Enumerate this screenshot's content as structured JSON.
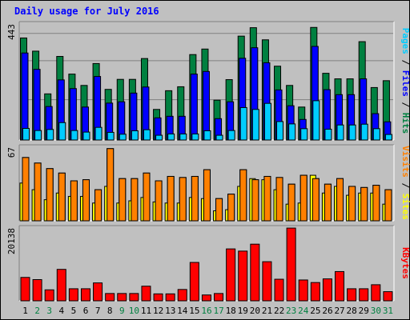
{
  "title": "Daily usage for July 2016",
  "chart_data": [
    {
      "type": "bar",
      "panel": "pages-files-hits",
      "ymax_label": "443",
      "ylim": [
        0,
        443
      ],
      "axis_label_parts": [
        {
          "text": "Pages",
          "color": "#00ccff"
        },
        {
          "text": " / ",
          "color": "#000000"
        },
        {
          "text": "Files",
          "color": "#0000ff"
        },
        {
          "text": " / ",
          "color": "#000000"
        },
        {
          "text": "Hits",
          "color": "#008040"
        }
      ],
      "series": [
        {
          "name": "Hits",
          "color": "#008040",
          "values": [
            387,
            337,
            175,
            317,
            250,
            207,
            290,
            192,
            230,
            230,
            309,
            116,
            187,
            202,
            324,
            345,
            151,
            229,
            394,
            426,
            380,
            280,
            207,
            125,
            427,
            253,
            232,
            232,
            373,
            199,
            225
          ]
        },
        {
          "name": "Files",
          "color": "#0000ff",
          "values": [
            330,
            268,
            127,
            228,
            195,
            125,
            241,
            140,
            145,
            178,
            201,
            84,
            90,
            90,
            250,
            260,
            81,
            145,
            310,
            350,
            293,
            190,
            130,
            78,
            355,
            191,
            172,
            172,
            232,
            100,
            69
          ]
        },
        {
          "name": "Pages",
          "color": "#00ccff",
          "values": [
            44,
            36,
            40,
            66,
            36,
            30,
            48,
            29,
            22,
            35,
            39,
            18,
            23,
            23,
            23,
            35,
            18,
            36,
            123,
            116,
            139,
            70,
            61,
            43,
            149,
            41,
            57,
            57,
            60,
            43,
            21
          ]
        }
      ]
    },
    {
      "type": "bar",
      "panel": "visits-sites",
      "ymax_label": "67",
      "ylim": [
        0,
        67
      ],
      "axis_label_parts": [
        {
          "text": "Visits",
          "color": "#ff8000"
        },
        {
          "text": " / ",
          "color": "#000000"
        },
        {
          "text": "Sites",
          "color": "#ffff00"
        }
      ],
      "series": [
        {
          "name": "Visits",
          "color": "#ff8000",
          "values": [
            57,
            52,
            47,
            43,
            36,
            37,
            28,
            65,
            38,
            38,
            43,
            36,
            40,
            39,
            40,
            46,
            20,
            24,
            46,
            37,
            40,
            39,
            33,
            41,
            38,
            33,
            38,
            31,
            30,
            32,
            28
          ]
        },
        {
          "name": "Sites",
          "color": "#ffff00",
          "values": [
            34,
            28,
            19,
            25,
            22,
            22,
            16,
            31,
            16,
            18,
            21,
            17,
            16,
            16,
            21,
            20,
            9,
            10,
            31,
            38,
            37,
            28,
            15,
            16,
            41,
            25,
            31,
            23,
            25,
            25,
            15
          ]
        }
      ]
    },
    {
      "type": "bar",
      "panel": "kbytes",
      "ymax_label": "20138",
      "ylim": [
        0,
        20138
      ],
      "axis_label_parts": [
        {
          "text": "KBytes",
          "color": "#ff0000"
        }
      ],
      "series": [
        {
          "name": "KBytes",
          "color": "#ff0000",
          "values": [
            6400,
            5800,
            3000,
            8600,
            3300,
            3300,
            4900,
            2000,
            2000,
            2000,
            4000,
            1900,
            1900,
            3100,
            10500,
            1600,
            2000,
            14200,
            13600,
            15500,
            10700,
            5900,
            19900,
            5700,
            5000,
            6000,
            8000,
            3300,
            3300,
            4400,
            2500
          ]
        }
      ]
    }
  ],
  "x_labels": [
    "1",
    "2",
    "3",
    "4",
    "5",
    "6",
    "7",
    "8",
    "9",
    "10",
    "11",
    "12",
    "13",
    "14",
    "15",
    "16",
    "17",
    "18",
    "19",
    "20",
    "21",
    "22",
    "23",
    "24",
    "25",
    "26",
    "27",
    "28",
    "29",
    "30",
    "31"
  ],
  "weekend_days": [
    2,
    3,
    9,
    10,
    16,
    17,
    23,
    24,
    30,
    31
  ],
  "colors": {
    "weekday": "#000000",
    "weekend": "#008040"
  }
}
